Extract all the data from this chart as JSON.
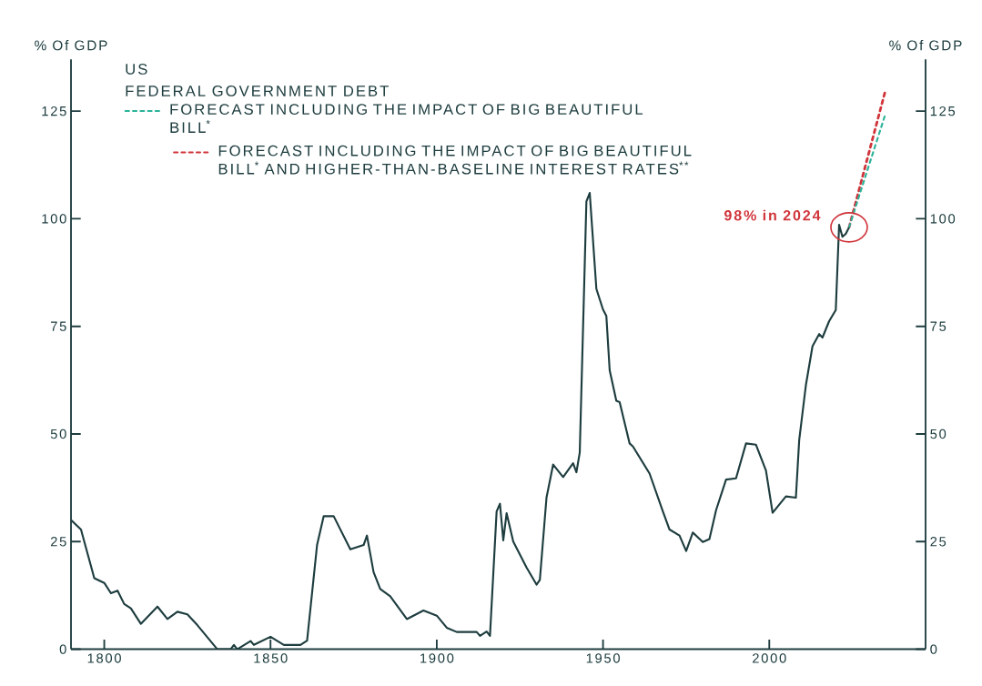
{
  "chart_data": {
    "type": "line",
    "title": "US",
    "subtitle": "FEDERAL GOVERNMENT DEBT",
    "ylabel": "% Of GDP",
    "y2label": "% Of GDP",
    "xlim": [
      1790,
      2047
    ],
    "xticks": [
      1800,
      1850,
      1900,
      1950,
      2000
    ],
    "ylim": [
      0,
      137
    ],
    "yticks": [
      0,
      25,
      50,
      75,
      100,
      125
    ],
    "y2lim": [
      0,
      137
    ],
    "y2ticks": [
      0,
      25,
      50,
      75,
      100,
      125
    ],
    "legend": "top left",
    "marker": "none",
    "annotations": [
      {
        "text": "98% in 2024",
        "x": 2024,
        "y": 98
      }
    ],
    "series": [
      {
        "color": "#1e3d3f",
        "line_style": "solid",
        "x": [
          1790,
          1793,
          1797,
          1800,
          1802,
          1804,
          1806,
          1808,
          1811,
          1816,
          1819,
          1822,
          1825,
          1828,
          1834,
          1838,
          1839,
          1840,
          1844,
          1845,
          1850,
          1854,
          1859,
          1861,
          1864,
          1866,
          1869,
          1874,
          1878,
          1879,
          1881,
          1883,
          1886,
          1891,
          1896,
          1900,
          1903,
          1906,
          1912,
          1913,
          1915,
          1916,
          1918,
          1919,
          1920,
          1921,
          1923,
          1925,
          1927,
          1930,
          1931,
          1933,
          1935,
          1938,
          1941,
          1942,
          1943,
          1945,
          1946,
          1948,
          1950,
          1951,
          1952,
          1954,
          1955,
          1958,
          1959,
          1964,
          1968,
          1970,
          1973,
          1975,
          1977,
          1980,
          1982,
          1984,
          1987,
          1990,
          1993,
          1996,
          1999,
          2001,
          2005,
          2008,
          2009,
          2011,
          2013,
          2015,
          2016,
          2018,
          2020,
          2021,
          2022,
          2023,
          2024
        ],
        "values": [
          30,
          27.8,
          16.5,
          15.4,
          13,
          13.6,
          10.5,
          9.5,
          5.9,
          9.9,
          7,
          8.7,
          8.1,
          5.6,
          0,
          0,
          1,
          0,
          1.9,
          1,
          2.9,
          1,
          1,
          2,
          24.2,
          30.9,
          30.9,
          23.2,
          24.2,
          26.4,
          17.9,
          14,
          12.3,
          7,
          9,
          7.8,
          5,
          4,
          4,
          3.1,
          4.1,
          3.1,
          32,
          33.8,
          25.3,
          31.6,
          25,
          22,
          19,
          15,
          16.1,
          35.2,
          42.9,
          40,
          43.2,
          41.1,
          45.7,
          104,
          106,
          83.7,
          78.9,
          77.4,
          64.8,
          57.7,
          57.4,
          47.8,
          47.1,
          40.8,
          32,
          27.8,
          26.4,
          22.8,
          27.1,
          24.9,
          25.6,
          32.3,
          39.4,
          39.7,
          47.8,
          47.5,
          41.5,
          31.7,
          35.5,
          35.2,
          48.6,
          61.3,
          70.4,
          73.2,
          72.4,
          76.2,
          78.8,
          98.6,
          95.8,
          96.5,
          98
        ]
      },
      {
        "name": "FORECAST INCLUDING THE IMPACT OF BIG BEAUTIFUL BILL$^{*}$",
        "color": "#2bb39a",
        "line_style": "dashed",
        "x": [
          2024,
          2035
        ],
        "values": [
          98,
          124.5
        ]
      },
      {
        "name": "FORECAST INCLUDING THE IMPACT OF BIG BEAUTIFUL BILL$^{*}$ AND HIGHER-THAN-BASELINE INTEREST RATES$^{**}$",
        "color": "#d0343a",
        "line_style": "dashed",
        "x": [
          2024,
          2035
        ],
        "values": [
          98,
          130
        ]
      }
    ]
  }
}
